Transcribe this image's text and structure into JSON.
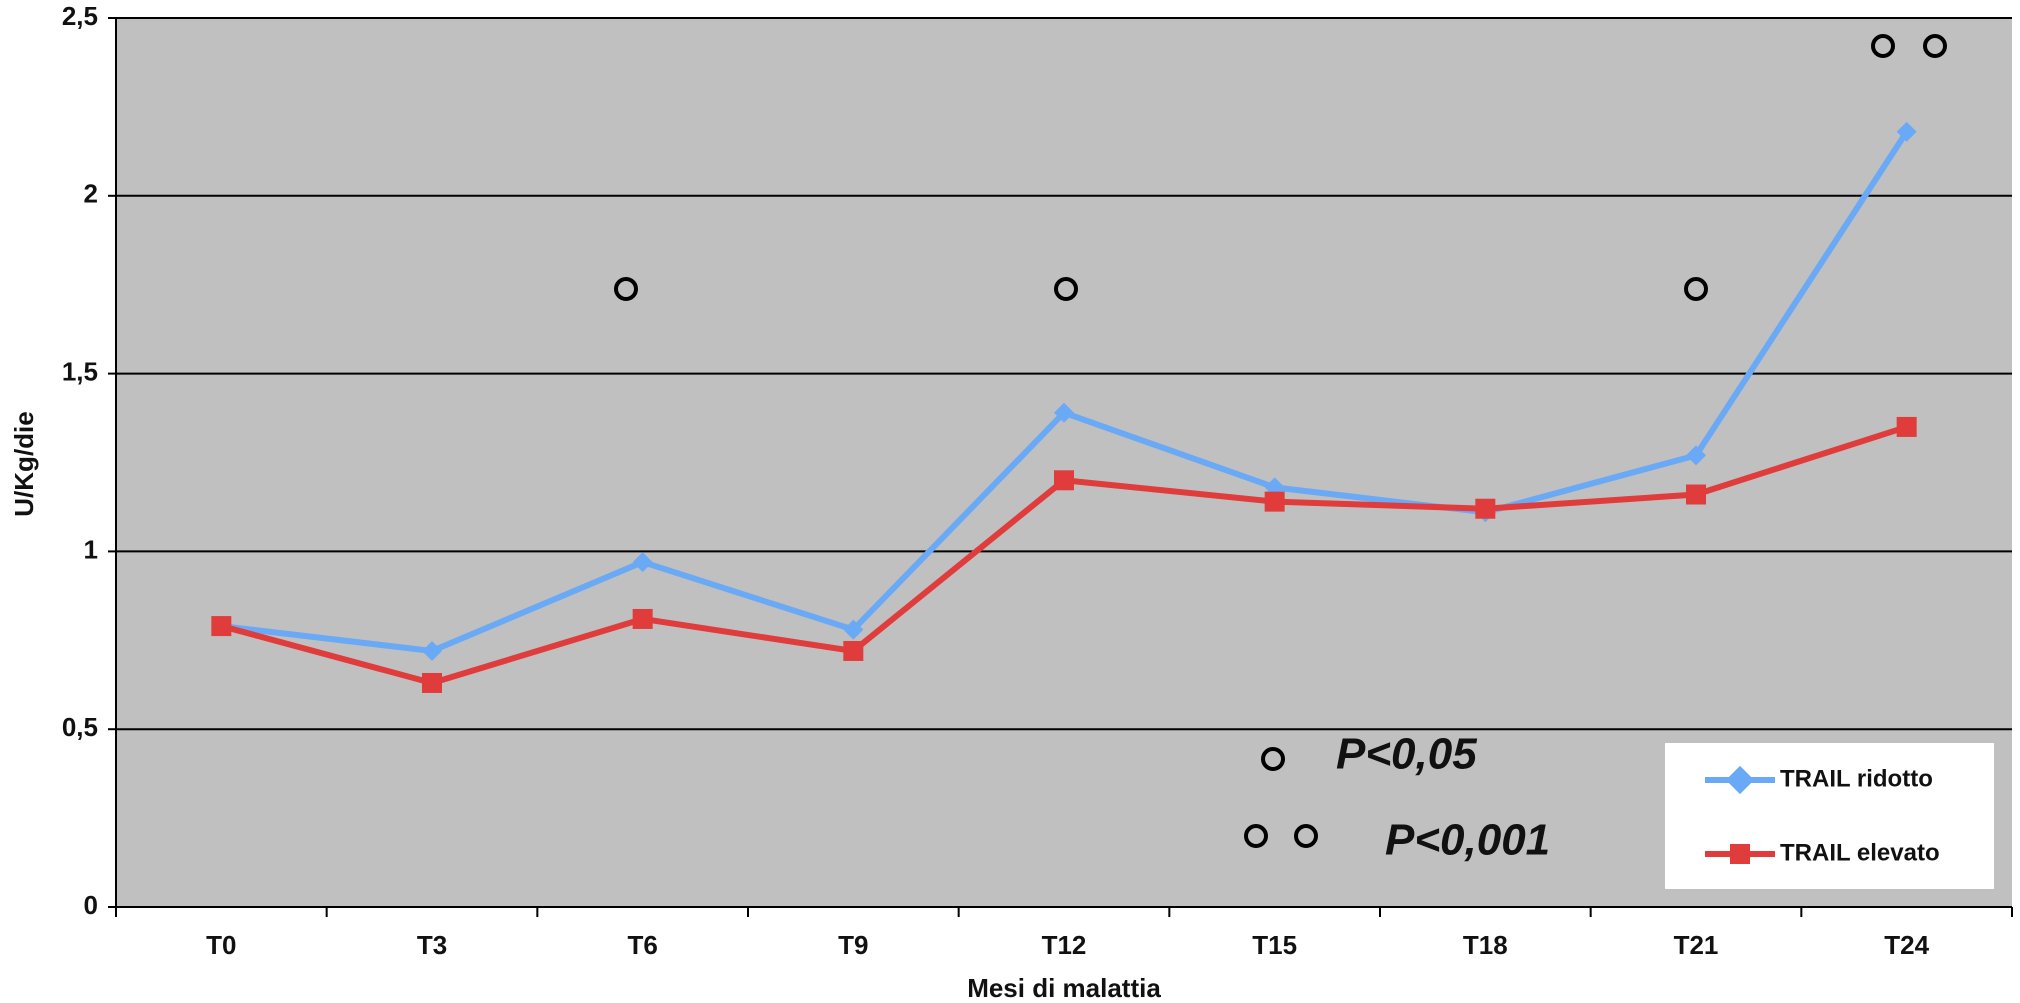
{
  "chart_data": {
    "type": "line",
    "categories": [
      "T0",
      "T3",
      "T6",
      "T9",
      "T12",
      "T15",
      "T18",
      "T21",
      "T24"
    ],
    "series": [
      {
        "name": "TRAIL ridotto",
        "color": "#6aa9f5",
        "marker": "diamond",
        "values": [
          0.79,
          0.72,
          0.97,
          0.78,
          1.39,
          1.18,
          1.11,
          1.27,
          2.18
        ]
      },
      {
        "name": "TRAIL elevato",
        "color": "#e03c3c",
        "marker": "square",
        "values": [
          0.79,
          0.63,
          0.81,
          0.72,
          1.2,
          1.14,
          1.12,
          1.16,
          1.35
        ]
      }
    ],
    "ylim": [
      0,
      2.5
    ],
    "yticks": [
      0,
      {
        "value": 0.5,
        "label": "0,5"
      },
      1,
      {
        "value": 1.5,
        "label": "1,5"
      },
      2,
      {
        "value": 2.5,
        "label": "2,5"
      }
    ],
    "grid": true,
    "xlabel": "Mesi di malattia",
    "ylabel": "U/Kg/die",
    "annotations": [
      "P<0,05",
      "P<0,001"
    ],
    "legend_position": "lower right"
  }
}
